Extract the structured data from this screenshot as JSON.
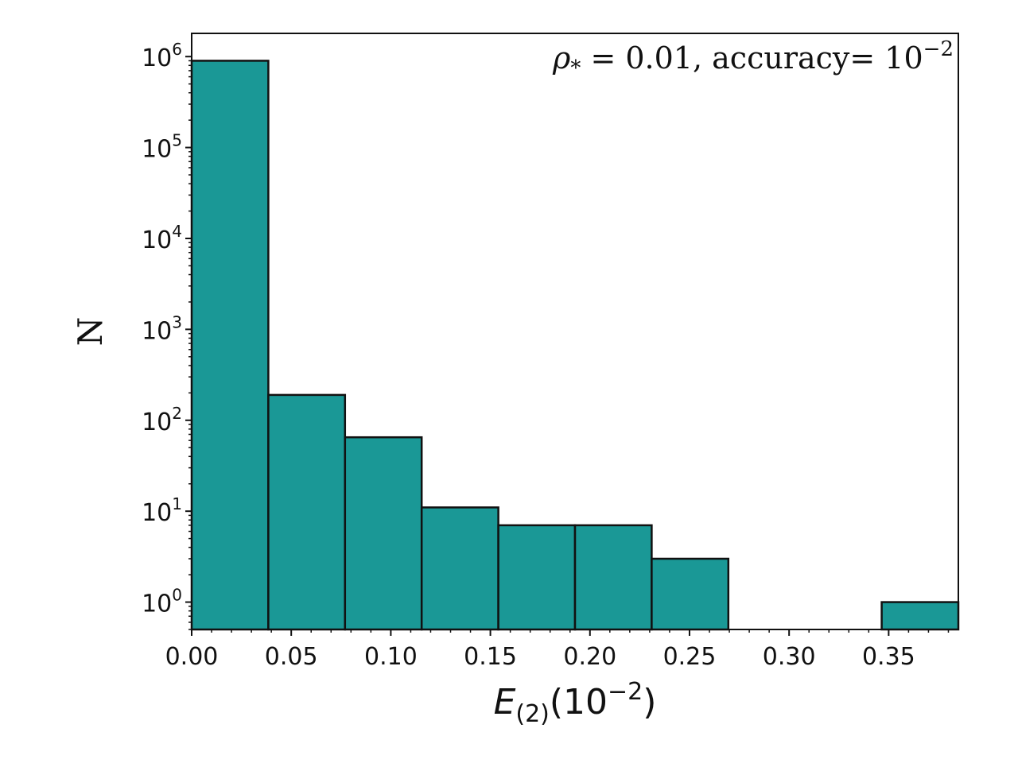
{
  "chart_data": {
    "type": "bar",
    "subtype": "histogram",
    "y_scale": "log",
    "bin_edges": [
      0.0,
      0.0385,
      0.077,
      0.1155,
      0.154,
      0.1925,
      0.231,
      0.2695,
      0.308,
      0.3465,
      0.385
    ],
    "counts": [
      900000,
      190,
      65,
      11,
      7,
      7,
      3,
      0,
      0,
      1
    ],
    "xlim": [
      0.0,
      0.385
    ],
    "ylim": [
      0.5,
      1800000
    ],
    "x_ticks": [
      "0.00",
      "0.05",
      "0.10",
      "0.15",
      "0.20",
      "0.25",
      "0.30",
      "0.35"
    ],
    "y_ticks": [
      {
        "base": "10",
        "exp": "0"
      },
      {
        "base": "10",
        "exp": "1"
      },
      {
        "base": "10",
        "exp": "2"
      },
      {
        "base": "10",
        "exp": "3"
      },
      {
        "base": "10",
        "exp": "4"
      },
      {
        "base": "10",
        "exp": "5"
      },
      {
        "base": "10",
        "exp": "6"
      }
    ],
    "xlabel": {
      "main": "E",
      "sub": "(2)",
      "rest": "(10",
      "exp": "−2",
      "close": ")"
    },
    "ylabel": "N",
    "annotation": {
      "rho": "ρ",
      "rho_sub": "*",
      "eq": " = 0.01, accuracy= 10",
      "exp": "−2"
    },
    "bar_color": "#1a9896",
    "edge_color": "#111111",
    "grid": false
  }
}
